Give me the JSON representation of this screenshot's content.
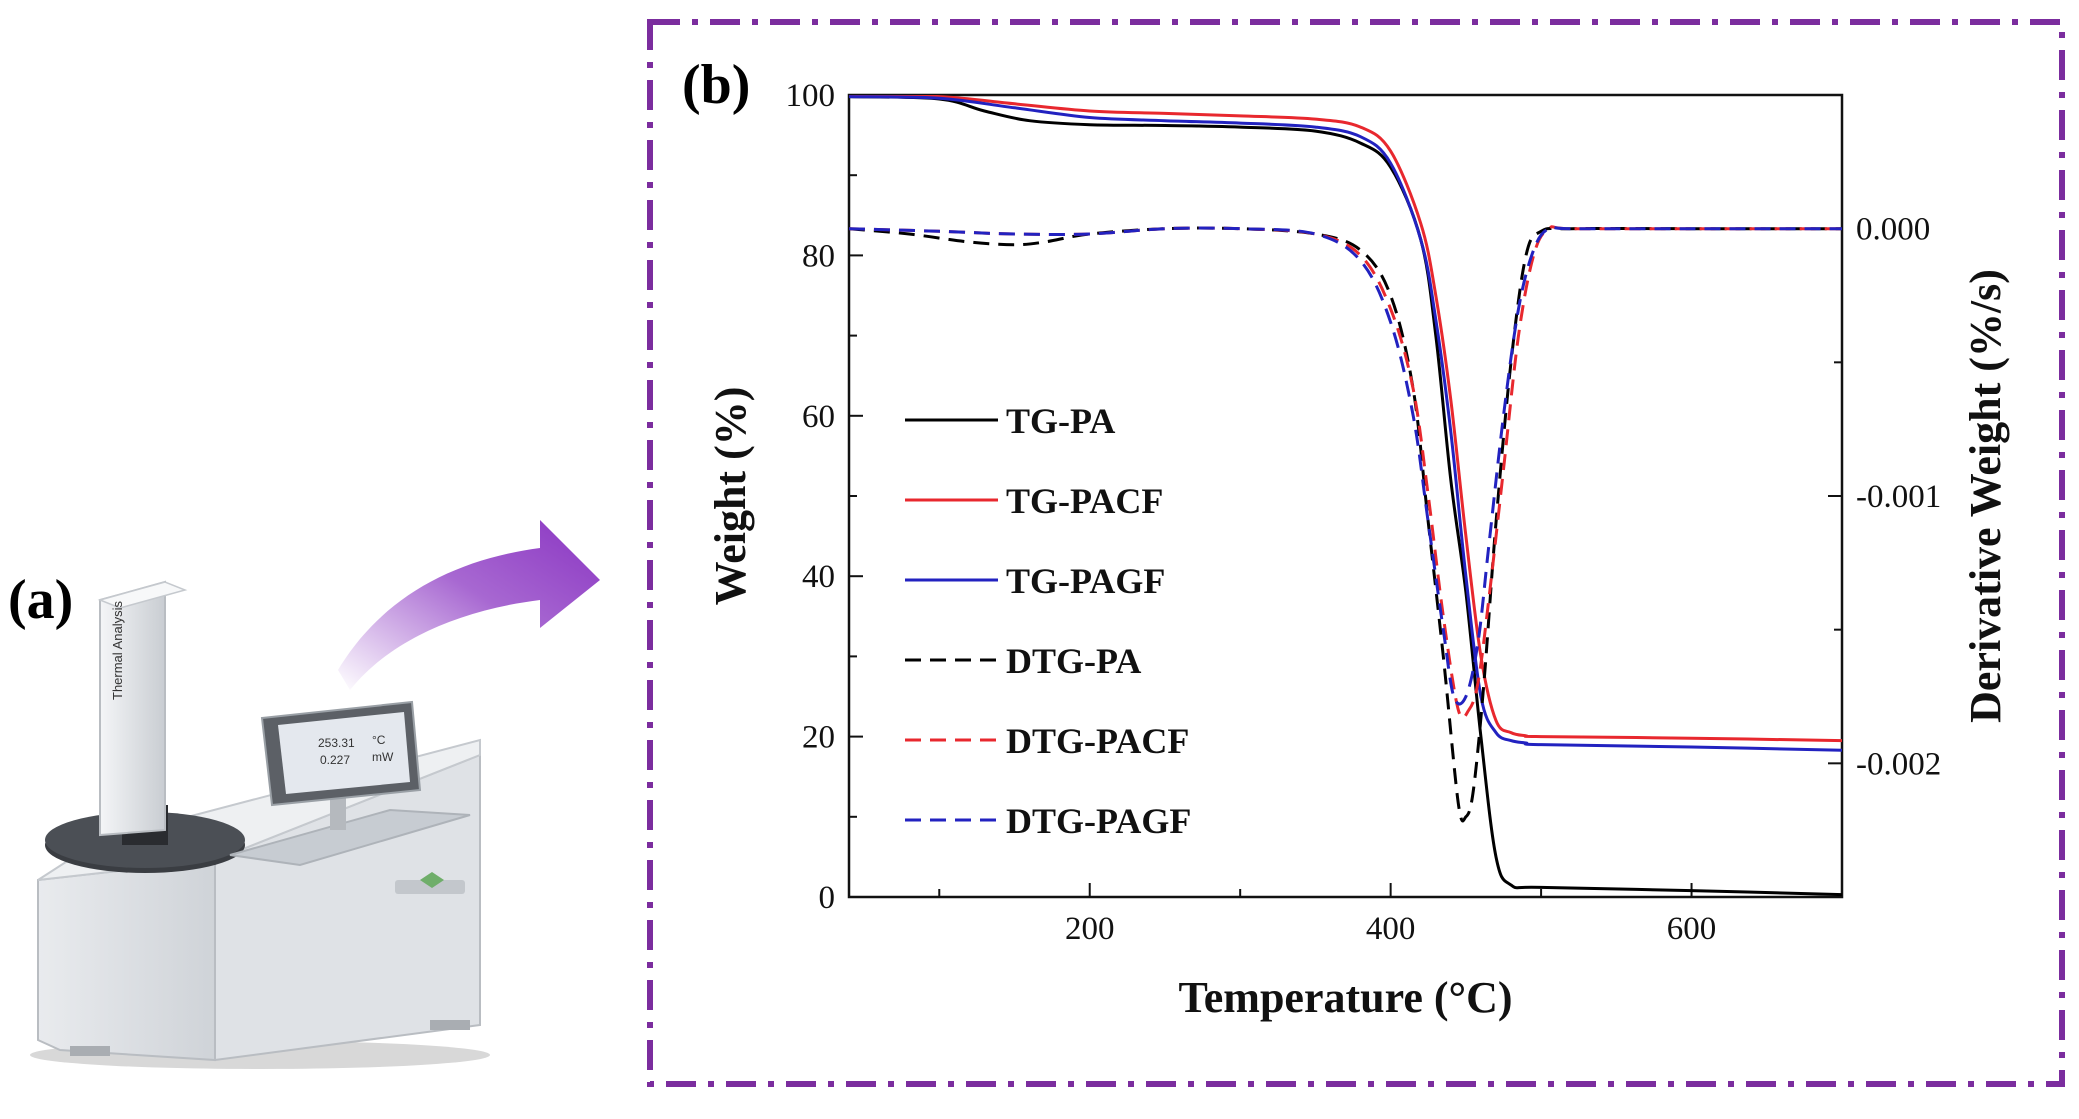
{
  "panels": {
    "a_label": "(a)",
    "b_label": "(b)"
  },
  "instrument": {
    "column_text": "Thermal Analysis",
    "screen_value_1": "253.31",
    "screen_unit_1": "°C",
    "screen_value_2": "0.227",
    "screen_unit_2": "mW"
  },
  "colors": {
    "frame": "#7B2D9E",
    "arrow": "#8A35C2",
    "TG-PA": "#000000",
    "TG-PACF": "#E8282E",
    "TG-PAGF": "#2222C0",
    "DTG-PA": "#000000",
    "DTG-PACF": "#E8282E",
    "DTG-PAGF": "#2222C0"
  },
  "chart_data": {
    "type": "line",
    "title": "",
    "xlabel": "Temperature (°C)",
    "ylabel": "Weight (%)",
    "y2label": "Derivative  Weight (%/s)",
    "xlim": [
      40,
      700
    ],
    "ylim": [
      0,
      100
    ],
    "y2lim": [
      -0.0025,
      0.0005
    ],
    "xticks": [
      200,
      400,
      600
    ],
    "xtick_labels": [
      "200",
      "400",
      "600"
    ],
    "yticks": [
      0,
      20,
      40,
      60,
      80,
      100
    ],
    "ytick_labels": [
      "0",
      "20",
      "40",
      "60",
      "80",
      "100"
    ],
    "y2ticks": [
      0.0,
      -0.001,
      -0.002
    ],
    "y2tick_labels": [
      "0.000",
      "-0.001",
      "-0.002"
    ],
    "legend": [
      "TG-PA",
      "TG-PACF",
      "TG-PAGF",
      "DTG-PA",
      "DTG-PACF",
      "DTG-PAGF"
    ],
    "legend_position": "center-left",
    "series": [
      {
        "name": "TG-PA",
        "axis": "left",
        "style": "solid",
        "x": [
          40,
          100,
          130,
          160,
          200,
          250,
          300,
          350,
          380,
          400,
          420,
          430,
          440,
          450,
          460,
          470,
          480,
          500,
          600,
          700
        ],
        "y": [
          99.8,
          99.5,
          98.0,
          96.8,
          96.3,
          96.2,
          96.0,
          95.5,
          94.0,
          91.0,
          82.0,
          70.0,
          52.0,
          38.0,
          20.0,
          5.0,
          1.5,
          1.2,
          0.8,
          0.3
        ]
      },
      {
        "name": "TG-PACF",
        "axis": "left",
        "style": "solid",
        "x": [
          40,
          100,
          150,
          200,
          250,
          300,
          350,
          380,
          400,
          420,
          430,
          440,
          450,
          460,
          470,
          480,
          490,
          500,
          600,
          700
        ],
        "y": [
          99.9,
          99.8,
          98.9,
          98.0,
          97.7,
          97.4,
          97.0,
          96.0,
          93.0,
          84.0,
          75.0,
          62.0,
          45.0,
          30.0,
          22.0,
          20.5,
          20.1,
          20.0,
          19.8,
          19.5
        ]
      },
      {
        "name": "TG-PAGF",
        "axis": "left",
        "style": "solid",
        "x": [
          40,
          100,
          150,
          200,
          250,
          300,
          350,
          380,
          400,
          420,
          430,
          440,
          450,
          460,
          470,
          480,
          490,
          500,
          600,
          700
        ],
        "y": [
          99.8,
          99.6,
          98.4,
          97.2,
          96.8,
          96.5,
          96.0,
          94.8,
          91.5,
          82.0,
          72.0,
          58.0,
          40.0,
          25.0,
          20.5,
          19.5,
          19.2,
          19.0,
          18.7,
          18.3
        ]
      },
      {
        "name": "DTG-PA",
        "axis": "right",
        "style": "dashed",
        "x": [
          40,
          80,
          120,
          150,
          170,
          200,
          250,
          300,
          350,
          380,
          400,
          415,
          425,
          435,
          445,
          450,
          455,
          462,
          470,
          480,
          490,
          500,
          520,
          600,
          700
        ],
        "y": [
          0.0,
          -2e-05,
          -5e-05,
          -6e-05,
          -5e-05,
          -2e-05,
          0.0,
          0.0,
          -2e-05,
          -8e-05,
          -0.00025,
          -0.0006,
          -0.0011,
          -0.0016,
          -0.00215,
          -0.0022,
          -0.0021,
          -0.0017,
          -0.0011,
          -0.0005,
          -0.0001,
          -1e-05,
          0.0,
          0.0,
          0.0
        ]
      },
      {
        "name": "DTG-PACF",
        "axis": "right",
        "style": "dashed",
        "x": [
          40,
          100,
          150,
          200,
          250,
          300,
          350,
          380,
          400,
          415,
          425,
          435,
          445,
          452,
          458,
          465,
          475,
          485,
          495,
          505,
          520,
          600,
          700
        ],
        "y": [
          0.0,
          -1e-05,
          -2e-05,
          -2e-05,
          0.0,
          0.0,
          -2e-05,
          -0.0001,
          -0.0003,
          -0.0006,
          -0.001,
          -0.00145,
          -0.0018,
          -0.0018,
          -0.0017,
          -0.0014,
          -0.0009,
          -0.0004,
          -0.0001,
          0.0,
          0.0,
          0.0,
          0.0
        ]
      },
      {
        "name": "DTG-PAGF",
        "axis": "right",
        "style": "dashed",
        "x": [
          40,
          100,
          150,
          200,
          250,
          300,
          350,
          380,
          400,
          415,
          425,
          435,
          442,
          450,
          458,
          465,
          475,
          485,
          495,
          505,
          520,
          600,
          700
        ],
        "y": [
          0.0,
          -1e-05,
          -2e-05,
          -2e-05,
          0.0,
          0.0,
          -2e-05,
          -0.00012,
          -0.00035,
          -0.0007,
          -0.0011,
          -0.0015,
          -0.00175,
          -0.00175,
          -0.00155,
          -0.0012,
          -0.0007,
          -0.0003,
          -8e-05,
          0.0,
          0.0,
          0.0,
          0.0
        ]
      }
    ]
  }
}
